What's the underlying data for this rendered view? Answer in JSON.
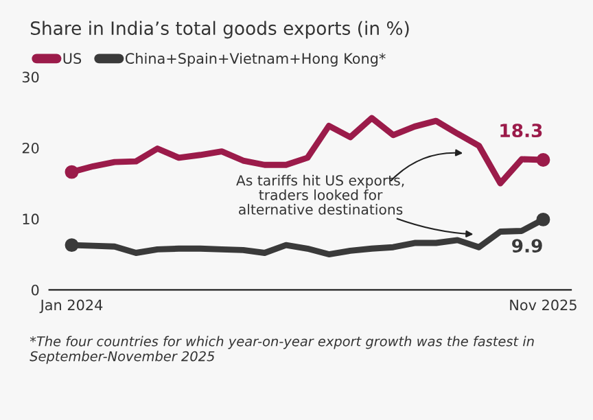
{
  "chart_data": {
    "type": "line",
    "title": "Share in India’s total goods exports (in %)",
    "categories": [
      "Jan 2024",
      null,
      null,
      null,
      null,
      null,
      null,
      null,
      null,
      null,
      null,
      null,
      null,
      null,
      null,
      null,
      null,
      null,
      null,
      null,
      null,
      null,
      "Nov 2025"
    ],
    "series": [
      {
        "name": "US",
        "color": "#9b1b4a",
        "values": [
          16.6,
          17.4,
          18.0,
          18.1,
          19.9,
          18.6,
          19.0,
          19.5,
          18.2,
          17.6,
          17.6,
          18.6,
          23.1,
          21.5,
          24.2,
          21.8,
          23.0,
          23.8,
          22.0,
          20.3,
          15.0,
          18.4,
          18.3
        ],
        "value_labels": [
          null,
          null,
          null,
          null,
          null,
          null,
          null,
          null,
          null,
          null,
          null,
          null,
          null,
          null,
          null,
          null,
          null,
          null,
          null,
          null,
          null,
          null,
          "18.3"
        ]
      },
      {
        "name": "China+Spain+Vietnam+Hong Kong*",
        "color": "#3a3a3a",
        "values": [
          6.3,
          6.2,
          6.1,
          5.2,
          5.7,
          5.8,
          5.8,
          5.7,
          5.6,
          5.2,
          6.3,
          5.8,
          5.0,
          5.5,
          5.8,
          6.0,
          6.6,
          6.6,
          7.0,
          6.0,
          8.2,
          8.3,
          9.9
        ],
        "value_labels": [
          null,
          null,
          null,
          null,
          null,
          null,
          null,
          null,
          null,
          null,
          null,
          null,
          null,
          null,
          null,
          null,
          null,
          null,
          null,
          null,
          null,
          null,
          "9.9"
        ]
      }
    ],
    "ylim": [
      0,
      30
    ],
    "yticks": [
      0,
      10,
      20,
      30
    ],
    "grid": false,
    "legend": "top left",
    "annotations": [
      "As tariffs hit US exports,\ntraders looked for\nalternative destinations",
      "*The four countries for which year-on-year export growth was the fastest in September-November 2025"
    ]
  }
}
